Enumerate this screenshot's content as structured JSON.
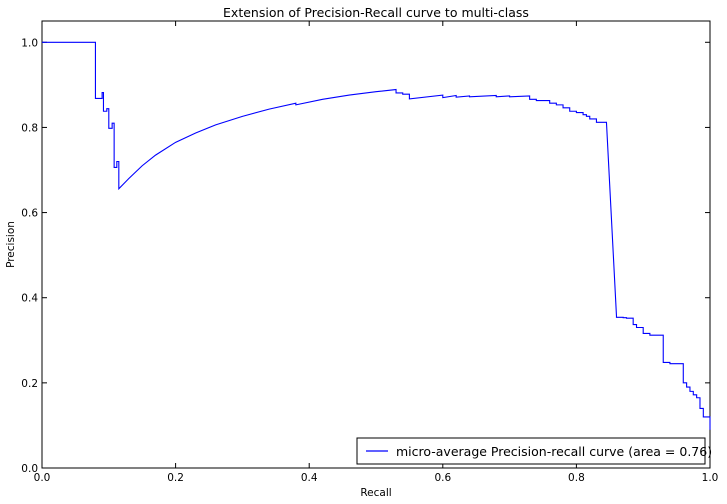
{
  "chart_data": {
    "type": "line",
    "title": "Extension of Precision-Recall curve to multi-class",
    "xlabel": "Recall",
    "ylabel": "Precision",
    "xlim": [
      0.0,
      1.0
    ],
    "ylim": [
      0.0,
      1.05
    ],
    "xticks": [
      0.0,
      0.2,
      0.4,
      0.6,
      0.8,
      1.0
    ],
    "xtick_labels": [
      "0.0",
      "0.2",
      "0.4",
      "0.6",
      "0.8",
      "1.0"
    ],
    "yticks": [
      0.0,
      0.2,
      0.4,
      0.6,
      0.8,
      1.0
    ],
    "ytick_labels": [
      "0.0",
      "0.2",
      "0.4",
      "0.6",
      "0.8",
      "1.0"
    ],
    "grid": false,
    "legend_position": "lower-right",
    "series": [
      {
        "name": "micro-average Precision-recall curve (area = 0.76)",
        "color": "#0000ff",
        "x": [
          0.0,
          0.0,
          0.08,
          0.08,
          0.09,
          0.09,
          0.092,
          0.092,
          0.097,
          0.097,
          0.1,
          0.1,
          0.105,
          0.105,
          0.108,
          0.108,
          0.112,
          0.112,
          0.115,
          0.115,
          0.13,
          0.15,
          0.17,
          0.2,
          0.23,
          0.26,
          0.3,
          0.34,
          0.38,
          0.38,
          0.42,
          0.46,
          0.5,
          0.53,
          0.53,
          0.54,
          0.54,
          0.55,
          0.55,
          0.6,
          0.6,
          0.62,
          0.62,
          0.64,
          0.64,
          0.68,
          0.68,
          0.7,
          0.7,
          0.73,
          0.73,
          0.74,
          0.74,
          0.76,
          0.76,
          0.77,
          0.77,
          0.78,
          0.78,
          0.79,
          0.79,
          0.8,
          0.8,
          0.81,
          0.81,
          0.815,
          0.815,
          0.82,
          0.82,
          0.83,
          0.83,
          0.845,
          0.86,
          0.86,
          0.87,
          0.87,
          0.875,
          0.875,
          0.885,
          0.885,
          0.89,
          0.89,
          0.9,
          0.9,
          0.91,
          0.91,
          0.93,
          0.93,
          0.94,
          0.94,
          0.96,
          0.96,
          0.965,
          0.965,
          0.97,
          0.97,
          0.975,
          0.975,
          0.98,
          0.98,
          0.985,
          0.985,
          0.99,
          0.99,
          1.0,
          1.0,
          1.0
        ],
        "y": [
          1.0,
          1.0,
          1.0,
          0.868,
          0.868,
          0.882,
          0.882,
          0.838,
          0.838,
          0.844,
          0.844,
          0.798,
          0.798,
          0.81,
          0.81,
          0.706,
          0.706,
          0.72,
          0.72,
          0.656,
          0.68,
          0.71,
          0.735,
          0.765,
          0.787,
          0.806,
          0.826,
          0.843,
          0.857,
          0.853,
          0.866,
          0.876,
          0.884,
          0.889,
          0.881,
          0.881,
          0.878,
          0.878,
          0.867,
          0.876,
          0.87,
          0.875,
          0.871,
          0.874,
          0.872,
          0.875,
          0.872,
          0.874,
          0.872,
          0.874,
          0.866,
          0.866,
          0.863,
          0.863,
          0.857,
          0.857,
          0.853,
          0.853,
          0.846,
          0.846,
          0.838,
          0.838,
          0.835,
          0.835,
          0.83,
          0.83,
          0.826,
          0.826,
          0.82,
          0.82,
          0.812,
          0.812,
          0.357,
          0.354,
          0.354,
          0.353,
          0.353,
          0.352,
          0.352,
          0.337,
          0.337,
          0.33,
          0.33,
          0.316,
          0.316,
          0.312,
          0.312,
          0.248,
          0.248,
          0.245,
          0.245,
          0.2,
          0.2,
          0.19,
          0.19,
          0.18,
          0.18,
          0.172,
          0.172,
          0.165,
          0.165,
          0.14,
          0.14,
          0.12,
          0.12,
          0.092,
          0.09
        ]
      }
    ]
  }
}
